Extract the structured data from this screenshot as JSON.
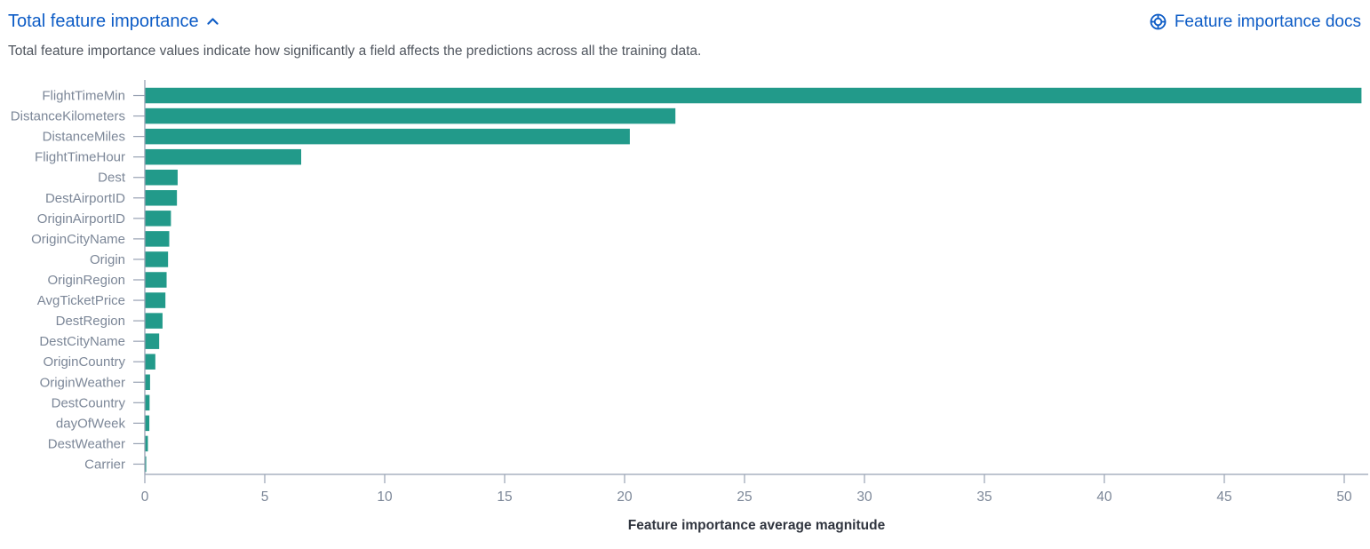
{
  "header": {
    "title": "Total feature importance",
    "docs_link_label": "Feature importance docs"
  },
  "description": "Total feature importance values indicate how significantly a field affects the predictions across all the training data.",
  "colors": {
    "link_blue": "#0D5CC6",
    "bar": "#229A8A",
    "axis_label": "#7C8798",
    "axis_line": "#98A2B3",
    "axis_title": "#30353F",
    "description_text": "#50565F"
  },
  "chart_data": {
    "type": "bar",
    "orientation": "horizontal",
    "title": "",
    "xlabel": "Feature importance average magnitude",
    "ylabel": "",
    "categories": [
      "FlightTimeMin",
      "DistanceKilometers",
      "DistanceMiles",
      "FlightTimeHour",
      "Dest",
      "DestAirportID",
      "OriginAirportID",
      "OriginCityName",
      "Origin",
      "OriginRegion",
      "AvgTicketPrice",
      "DestRegion",
      "DestCityName",
      "OriginCountry",
      "OriginWeather",
      "DestCountry",
      "dayOfWeek",
      "DestWeather",
      "Carrier"
    ],
    "values": [
      50.7,
      22.1,
      20.2,
      6.5,
      1.35,
      1.32,
      1.07,
      1.0,
      0.95,
      0.89,
      0.84,
      0.72,
      0.58,
      0.42,
      0.2,
      0.18,
      0.17,
      0.11,
      0.04
    ],
    "x_ticks": [
      0,
      5,
      10,
      15,
      20,
      25,
      30,
      35,
      40,
      45,
      50
    ],
    "xlim": [
      0,
      51
    ],
    "grid": false,
    "legend": false,
    "bar_color": "#229A8A"
  }
}
